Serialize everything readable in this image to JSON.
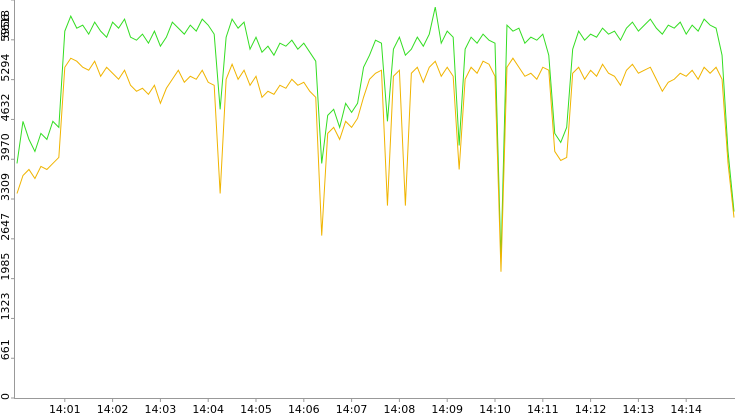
{
  "chart_data": {
    "type": "line",
    "x": [
      840,
      840.125,
      840.25,
      840.375,
      840.5,
      840.625,
      840.75,
      840.875,
      841,
      841.125,
      841.25,
      841.375,
      841.5,
      841.625,
      841.75,
      841.875,
      842,
      842.125,
      842.25,
      842.375,
      842.5,
      842.625,
      842.75,
      842.875,
      843,
      843.125,
      843.25,
      843.375,
      843.5,
      843.625,
      843.75,
      843.875,
      844,
      844.125,
      844.25,
      844.375,
      844.5,
      844.625,
      844.75,
      844.875,
      845,
      845.125,
      845.25,
      845.375,
      845.5,
      845.625,
      845.75,
      845.875,
      846,
      846.125,
      846.25,
      846.375,
      846.5,
      846.625,
      846.75,
      846.875,
      847,
      847.125,
      847.25,
      847.375,
      847.5,
      847.625,
      847.75,
      847.875,
      848,
      848.125,
      848.25,
      848.375,
      848.5,
      848.625,
      848.75,
      848.875,
      849,
      849.125,
      849.25,
      849.375,
      849.5,
      849.625,
      849.75,
      849.875,
      850,
      850.125,
      850.25,
      850.375,
      850.5,
      850.625,
      850.75,
      850.875,
      851,
      851.125,
      851.25,
      851.375,
      851.5,
      851.625,
      851.75,
      851.875,
      852,
      852.125,
      852.25,
      852.375,
      852.5,
      852.625,
      852.75,
      852.875,
      853,
      853.125,
      853.25,
      853.375,
      853.5,
      853.625,
      853.75,
      853.875,
      854,
      854.125,
      854.25,
      854.375,
      854.5,
      854.625,
      854.75,
      854.875,
      855
    ],
    "series": [
      {
        "color": "#33dd22",
        "values": [
          3900,
          4600,
          4300,
          4100,
          4400,
          4300,
          4600,
          4500,
          6100,
          6350,
          6150,
          6200,
          6050,
          6250,
          6100,
          6000,
          6250,
          6150,
          6300,
          6000,
          5950,
          6050,
          5900,
          6100,
          5850,
          6000,
          6250,
          6150,
          6050,
          6200,
          6100,
          6300,
          6200,
          6050,
          4800,
          6000,
          6300,
          6150,
          6250,
          5800,
          6000,
          5750,
          5850,
          5700,
          5900,
          5850,
          5950,
          5800,
          5900,
          5750,
          5600,
          3900,
          4700,
          4800,
          4500,
          4900,
          4750,
          4900,
          5500,
          5700,
          5950,
          5900,
          4600,
          5800,
          6000,
          5700,
          5800,
          6000,
          5850,
          6050,
          6500,
          5900,
          6100,
          6000,
          4200,
          5800,
          6000,
          5900,
          6050,
          5950,
          5900,
          2300,
          6200,
          6100,
          6150,
          5900,
          6000,
          5950,
          6050,
          5700,
          4400,
          4250,
          4500,
          5800,
          6100,
          5950,
          6050,
          6000,
          6150,
          6050,
          6100,
          5950,
          6150,
          6250,
          6100,
          6200,
          6300,
          6150,
          6050,
          6200,
          6150,
          6250,
          6050,
          6200,
          6100,
          6300,
          6200,
          6150,
          5700,
          4100,
          3100
        ]
      },
      {
        "color": "#f0b400",
        "values": [
          3400,
          3700,
          3800,
          3650,
          3850,
          3800,
          3900,
          4000,
          5500,
          5650,
          5600,
          5500,
          5450,
          5600,
          5350,
          5500,
          5400,
          5300,
          5450,
          5200,
          5100,
          5150,
          5050,
          5200,
          4900,
          5150,
          5300,
          5450,
          5250,
          5350,
          5300,
          5450,
          5250,
          5200,
          3400,
          5300,
          5550,
          5300,
          5450,
          5200,
          5350,
          5000,
          5100,
          5050,
          5200,
          5150,
          5300,
          5200,
          5250,
          5100,
          5000,
          2700,
          4400,
          4500,
          4300,
          4600,
          4500,
          4650,
          5000,
          5300,
          5400,
          5450,
          3200,
          5350,
          5450,
          3200,
          5400,
          5500,
          5250,
          5500,
          5600,
          5350,
          5500,
          5350,
          3800,
          5300,
          5500,
          5400,
          5600,
          5550,
          5350,
          2100,
          5500,
          5650,
          5500,
          5350,
          5400,
          5300,
          5500,
          5450,
          4100,
          3950,
          4000,
          5400,
          5500,
          5300,
          5450,
          5350,
          5550,
          5400,
          5350,
          5200,
          5450,
          5550,
          5400,
          5450,
          5500,
          5300,
          5100,
          5250,
          5300,
          5400,
          5350,
          5450,
          5300,
          5500,
          5400,
          5500,
          5300,
          3900,
          3000
        ]
      }
    ],
    "xlim": [
      840,
      855
    ],
    "xticks": [
      {
        "value": 841,
        "label": "14:01"
      },
      {
        "value": 842,
        "label": "14:02"
      },
      {
        "value": 843,
        "label": "14:03"
      },
      {
        "value": 844,
        "label": "14:04"
      },
      {
        "value": 845,
        "label": "14:05"
      },
      {
        "value": 846,
        "label": "14:06"
      },
      {
        "value": 847,
        "label": "14:07"
      },
      {
        "value": 848,
        "label": "14:08"
      },
      {
        "value": 849,
        "label": "14:09"
      },
      {
        "value": 850,
        "label": "14:10"
      },
      {
        "value": 851,
        "label": "14:11"
      },
      {
        "value": 852,
        "label": "14:12"
      },
      {
        "value": 853,
        "label": "14:13"
      },
      {
        "value": 854,
        "label": "14:14"
      }
    ],
    "ylim": [
      0,
      6618
    ],
    "yticks": [
      0,
      661,
      1323,
      1985,
      2647,
      3309,
      3970,
      4632,
      5294,
      5956,
      6618
    ]
  }
}
